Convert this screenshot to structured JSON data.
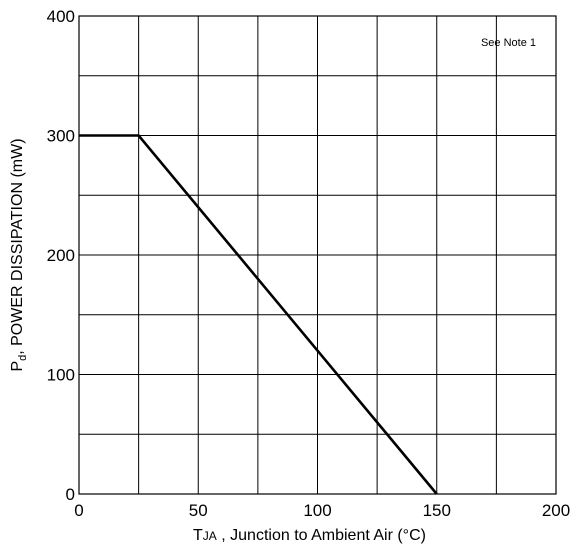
{
  "chart_data": {
    "type": "line",
    "x": [
      0,
      25,
      150
    ],
    "series": [
      {
        "values": [
          300,
          300,
          0
        ]
      }
    ],
    "xlim": [
      0,
      200
    ],
    "ylim": [
      0,
      400
    ],
    "xticks": [
      0,
      50,
      100,
      150,
      200
    ],
    "yticks": [
      0,
      100,
      200,
      300,
      400
    ],
    "grid": true,
    "grid_step_x": 25,
    "grid_step_y": 50,
    "annotation": "See Note 1",
    "annotation_position": "top-right",
    "ylabel": {
      "sym": "P",
      "sub": "d",
      "rest": ", POWER DISSIPATION (mW)"
    },
    "xlabel": {
      "sym": "T",
      "sub": "JA",
      "rest": " , Junction to Ambient Air (°C)"
    }
  }
}
